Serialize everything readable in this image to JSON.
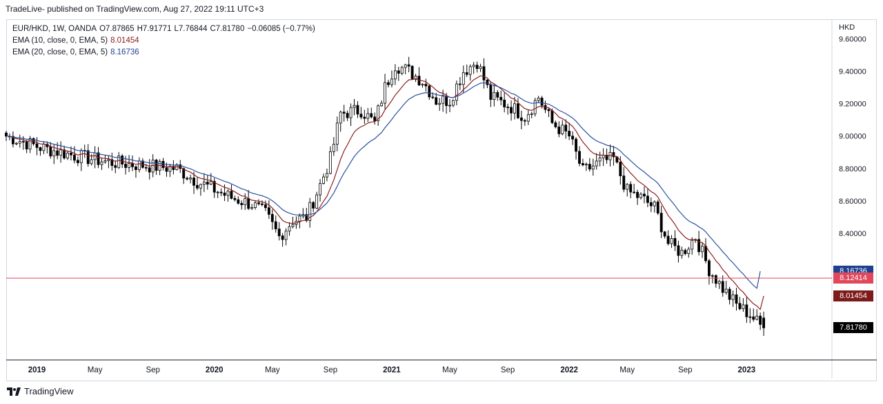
{
  "header": {
    "publisher_line": "TradeLive- published on TradingView.com, Aug 27, 2022 19:11 UTC+3"
  },
  "legend": {
    "symbol": "EUR/HKD, 1W, OANDA",
    "open_label": "O",
    "open": "7.87865",
    "high_label": "H",
    "high": "7.91771",
    "low_label": "L",
    "low": "7.76844",
    "close_label": "C",
    "close": "7.81780",
    "change": "−0.06085 (−0.77%)",
    "ema10_label": "EMA (10, close, 0, EMA, 5)",
    "ema10_value": "8.01454",
    "ema20_label": "EMA (20, close, 0, EMA, 5)",
    "ema20_value": "8.16736"
  },
  "axis": {
    "unit": "HKD"
  },
  "price_tags": {
    "ema20": "8.16736",
    "hline": "8.12414",
    "ema10": "8.01454",
    "last": "7.81780"
  },
  "footer": {
    "brand": "TradingView"
  },
  "colors": {
    "up": "#ffffff",
    "down": "#000000",
    "wick": "#000000",
    "ema10": "#8b1c1c",
    "ema20": "#2a4f9e",
    "hline": "#e0475b",
    "tag_ema20": "#1f3f8f",
    "tag_hline": "#e0475b",
    "tag_ema10": "#7d1b1b",
    "tag_last": "#000000"
  },
  "chart_data": {
    "type": "candlestick",
    "title": "EUR/HKD, 1W, OANDA",
    "ylabel": "HKD",
    "ylim": [
      7.62,
      9.72
    ],
    "y_ticks": [
      "9.60000",
      "9.40000",
      "9.20000",
      "9.00000",
      "8.80000",
      "8.60000",
      "8.40000"
    ],
    "x_ticks": [
      "2019",
      "May",
      "Sep",
      "2020",
      "May",
      "Sep",
      "2021",
      "May",
      "Sep",
      "2022",
      "May",
      "Sep",
      "2023"
    ],
    "x_tick_bold": [
      true,
      false,
      false,
      true,
      false,
      false,
      true,
      false,
      false,
      true,
      false,
      false,
      true
    ],
    "x_tick_weeks": [
      9,
      26,
      43,
      61,
      78,
      95,
      113,
      130,
      147,
      165,
      182,
      199,
      217
    ],
    "x_range_weeks": [
      0,
      242
    ],
    "close_anchors": [
      [
        0,
        9.0
      ],
      [
        10,
        8.93
      ],
      [
        20,
        8.88
      ],
      [
        30,
        8.84
      ],
      [
        40,
        8.82
      ],
      [
        50,
        8.8
      ],
      [
        56,
        8.72
      ],
      [
        66,
        8.62
      ],
      [
        72,
        8.58
      ],
      [
        76,
        8.52
      ],
      [
        80,
        8.38
      ],
      [
        84,
        8.48
      ],
      [
        88,
        8.5
      ],
      [
        92,
        8.7
      ],
      [
        95,
        8.86
      ],
      [
        98,
        9.14
      ],
      [
        104,
        9.16
      ],
      [
        108,
        9.08
      ],
      [
        111,
        9.3
      ],
      [
        114,
        9.44
      ],
      [
        118,
        9.4
      ],
      [
        122,
        9.34
      ],
      [
        126,
        9.22
      ],
      [
        130,
        9.22
      ],
      [
        134,
        9.4
      ],
      [
        138,
        9.46
      ],
      [
        142,
        9.24
      ],
      [
        148,
        9.18
      ],
      [
        152,
        9.12
      ],
      [
        156,
        9.24
      ],
      [
        160,
        9.08
      ],
      [
        165,
        9.0
      ],
      [
        169,
        8.78
      ],
      [
        174,
        8.84
      ],
      [
        178,
        8.86
      ],
      [
        182,
        8.66
      ],
      [
        186,
        8.62
      ],
      [
        190,
        8.56
      ],
      [
        194,
        8.34
      ],
      [
        198,
        8.28
      ],
      [
        202,
        8.38
      ],
      [
        206,
        8.18
      ],
      [
        210,
        8.06
      ],
      [
        214,
        7.96
      ],
      [
        218,
        7.9
      ],
      [
        222,
        7.81
      ]
    ],
    "hline": 8.12414,
    "series": [
      {
        "name": "EMA (10, close, 0, EMA, 5)",
        "period": 10,
        "last": 8.01454
      },
      {
        "name": "EMA (20, close, 0, EMA, 5)",
        "period": 20,
        "last": 8.16736
      }
    ],
    "last_candle": {
      "open": 7.87865,
      "high": 7.91771,
      "low": 7.76844,
      "close": 7.8178
    }
  }
}
